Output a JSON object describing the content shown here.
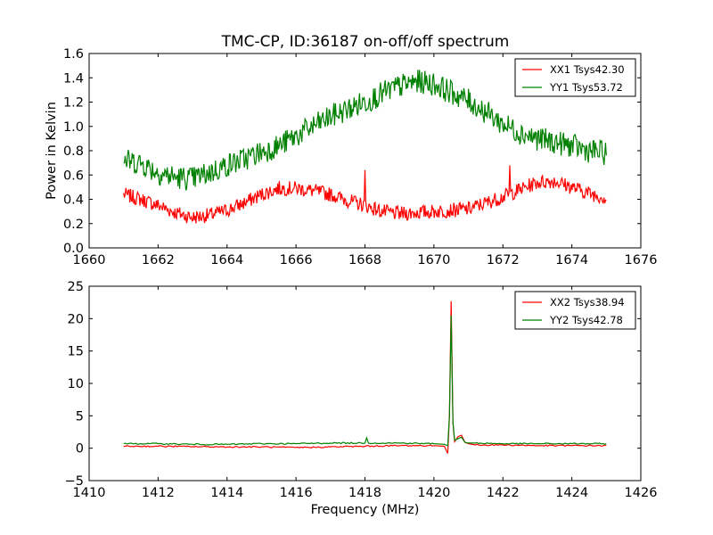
{
  "figure": {
    "title": "TMC-CP, ID:36187 on-off/off spectrum"
  },
  "chart_data": [
    {
      "type": "line",
      "title": "TMC-CP, ID:36187 on-off/off spectrum",
      "xlabel": "",
      "ylabel": "Power in Kelvin",
      "xlim": [
        1660,
        1676
      ],
      "ylim": [
        0.0,
        1.6
      ],
      "x_ticks": [
        1660,
        1662,
        1664,
        1666,
        1668,
        1670,
        1672,
        1674,
        1676
      ],
      "x_tick_labels": [
        "1660",
        "1662",
        "1664",
        "1666",
        "1668",
        "1670",
        "1672",
        "1674",
        "1676"
      ],
      "y_ticks": [
        0.0,
        0.2,
        0.4,
        0.6,
        0.8,
        1.0,
        1.2,
        1.4,
        1.6
      ],
      "y_tick_labels": [
        "0.0",
        "0.2",
        "0.4",
        "0.6",
        "0.8",
        "1.0",
        "1.2",
        "1.4",
        "1.6"
      ],
      "grid": false,
      "legend": "top-right",
      "series": [
        {
          "name": "XX1 Tsys42.30",
          "color": "#ff0000",
          "x": [
            1661.0,
            1661.5,
            1662.0,
            1662.5,
            1663.0,
            1663.5,
            1664.0,
            1664.5,
            1665.0,
            1665.5,
            1666.0,
            1666.5,
            1667.0,
            1667.5,
            1668.0,
            1668.5,
            1669.0,
            1669.5,
            1670.0,
            1670.5,
            1671.0,
            1671.5,
            1672.0,
            1672.5,
            1673.0,
            1673.5,
            1674.0,
            1674.5,
            1675.0
          ],
          "y": [
            0.44,
            0.4,
            0.35,
            0.29,
            0.25,
            0.27,
            0.31,
            0.37,
            0.44,
            0.49,
            0.49,
            0.47,
            0.44,
            0.39,
            0.35,
            0.3,
            0.28,
            0.29,
            0.3,
            0.31,
            0.32,
            0.37,
            0.42,
            0.48,
            0.54,
            0.55,
            0.5,
            0.45,
            0.41
          ],
          "spikes": [
            {
              "x": 1668.0,
              "y": 0.64
            },
            {
              "x": 1672.2,
              "y": 0.68
            }
          ]
        },
        {
          "name": "YY1 Tsys53.72",
          "color": "#008000",
          "x": [
            1661.0,
            1661.5,
            1662.0,
            1662.5,
            1663.0,
            1663.5,
            1664.0,
            1664.5,
            1665.0,
            1665.5,
            1666.0,
            1666.5,
            1667.0,
            1667.5,
            1668.0,
            1668.5,
            1669.0,
            1669.5,
            1670.0,
            1670.5,
            1671.0,
            1671.5,
            1672.0,
            1672.5,
            1673.0,
            1673.5,
            1674.0,
            1674.5,
            1675.0
          ],
          "y": [
            0.72,
            0.7,
            0.62,
            0.58,
            0.57,
            0.62,
            0.68,
            0.73,
            0.79,
            0.84,
            0.92,
            1.0,
            1.08,
            1.14,
            1.2,
            1.27,
            1.33,
            1.37,
            1.35,
            1.28,
            1.21,
            1.12,
            1.02,
            0.95,
            0.9,
            0.87,
            0.84,
            0.8,
            0.78
          ],
          "spikes": []
        }
      ]
    },
    {
      "type": "line",
      "title": "",
      "xlabel": "Frequency (MHz)",
      "ylabel": "",
      "xlim": [
        1410,
        1426
      ],
      "ylim": [
        -5,
        25
      ],
      "x_ticks": [
        1410,
        1412,
        1414,
        1416,
        1418,
        1420,
        1422,
        1424,
        1426
      ],
      "x_tick_labels": [
        "1410",
        "1412",
        "1414",
        "1416",
        "1418",
        "1420",
        "1422",
        "1424",
        "1426"
      ],
      "y_ticks": [
        -5,
        0,
        5,
        10,
        15,
        20,
        25
      ],
      "y_tick_labels": [
        "−5",
        "0",
        "5",
        "10",
        "15",
        "20",
        "25"
      ],
      "grid": false,
      "legend": "top-right",
      "series": [
        {
          "name": "XX2 Tsys38.94",
          "color": "#ff0000",
          "x": [
            1411.0,
            1412.0,
            1413.0,
            1414.0,
            1415.0,
            1416.0,
            1417.0,
            1418.0,
            1419.0,
            1420.0,
            1420.3,
            1420.4,
            1420.45,
            1420.5,
            1420.55,
            1420.6,
            1420.7,
            1420.8,
            1420.9,
            1421.0,
            1421.2,
            1422.0,
            1423.0,
            1424.0,
            1425.0
          ],
          "y": [
            0.3,
            0.3,
            0.25,
            0.2,
            0.2,
            0.1,
            0.2,
            0.3,
            0.4,
            0.4,
            0.3,
            -0.8,
            5.0,
            22.7,
            4.0,
            1.0,
            1.8,
            2.0,
            0.9,
            0.7,
            0.5,
            0.5,
            0.4,
            0.4,
            0.4
          ],
          "spikes": []
        },
        {
          "name": "YY2 Tsys42.78",
          "color": "#008000",
          "x": [
            1411.0,
            1412.0,
            1413.0,
            1414.0,
            1415.0,
            1416.0,
            1417.0,
            1418.0,
            1418.05,
            1418.1,
            1419.0,
            1420.0,
            1420.3,
            1420.4,
            1420.45,
            1420.5,
            1420.55,
            1420.6,
            1420.7,
            1420.8,
            1420.9,
            1421.0,
            1421.2,
            1422.0,
            1423.0,
            1424.0,
            1425.0
          ],
          "y": [
            0.7,
            0.7,
            0.6,
            0.6,
            0.7,
            0.7,
            0.8,
            0.8,
            1.6,
            0.8,
            0.8,
            0.7,
            0.6,
            0.4,
            5.0,
            20.5,
            4.0,
            1.2,
            1.5,
            1.7,
            0.9,
            0.8,
            0.8,
            0.7,
            0.7,
            0.7,
            0.7
          ],
          "spikes": []
        }
      ]
    }
  ]
}
